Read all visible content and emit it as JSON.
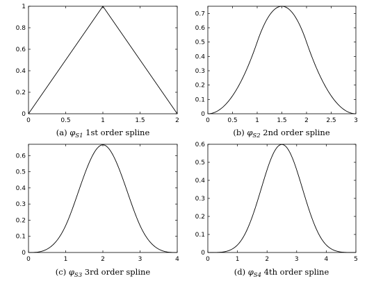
{
  "chart_data": [
    {
      "type": "line",
      "order": 1,
      "caption": {
        "prefix": "(a)",
        "symbol": "φ",
        "subscript": "S1",
        "text": "1st order spline"
      },
      "xlim": [
        0,
        2
      ],
      "ylim": [
        0,
        1
      ],
      "xticks": [
        0,
        0.5,
        1,
        1.5,
        2
      ],
      "yticks": [
        0,
        0.2,
        0.4,
        0.6,
        0.8,
        1
      ],
      "x": [
        0,
        0.25,
        0.5,
        0.75,
        1,
        1.25,
        1.5,
        1.75,
        2
      ],
      "y": [
        0,
        0.25,
        0.5,
        0.75,
        1,
        0.75,
        0.5,
        0.25,
        0
      ],
      "peak": {
        "x": 1,
        "y": 1
      }
    },
    {
      "type": "line",
      "order": 2,
      "caption": {
        "prefix": "(b)",
        "symbol": "φ",
        "subscript": "S2",
        "text": "2nd order spline"
      },
      "xlim": [
        0,
        3
      ],
      "ylim": [
        0,
        0.75
      ],
      "xticks": [
        0,
        0.5,
        1,
        1.5,
        2,
        2.5,
        3
      ],
      "yticks": [
        0,
        0.1,
        0.2,
        0.3,
        0.4,
        0.5,
        0.6,
        0.7
      ],
      "x": [
        0,
        0.5,
        1,
        1.5,
        2,
        2.5,
        3
      ],
      "y": [
        0,
        0.125,
        0.5,
        0.75,
        0.5,
        0.125,
        0
      ],
      "peak": {
        "x": 1.5,
        "y": 0.75
      }
    },
    {
      "type": "line",
      "order": 3,
      "caption": {
        "prefix": "(c)",
        "symbol": "φ",
        "subscript": "S3",
        "text": "3rd order spline"
      },
      "xlim": [
        0,
        4
      ],
      "ylim": [
        0,
        0.67
      ],
      "xticks": [
        0,
        1,
        2,
        3,
        4
      ],
      "yticks": [
        0,
        0.1,
        0.2,
        0.3,
        0.4,
        0.5,
        0.6
      ],
      "x": [
        0,
        0.5,
        1,
        1.5,
        2,
        2.5,
        3,
        3.5,
        4
      ],
      "y": [
        0,
        0.021,
        0.167,
        0.479,
        0.667,
        0.479,
        0.167,
        0.021,
        0
      ],
      "peak": {
        "x": 2,
        "y": 0.667
      }
    },
    {
      "type": "line",
      "order": 4,
      "caption": {
        "prefix": "(d)",
        "symbol": "φ",
        "subscript": "S4",
        "text": "4th order spline"
      },
      "xlim": [
        0,
        5
      ],
      "ylim": [
        0,
        0.6
      ],
      "xticks": [
        0,
        1,
        2,
        3,
        4,
        5
      ],
      "yticks": [
        0,
        0.1,
        0.2,
        0.3,
        0.4,
        0.5,
        0.6
      ],
      "x": [
        0,
        0.5,
        1,
        1.5,
        2,
        2.5,
        3,
        3.5,
        4,
        4.5,
        5
      ],
      "y": [
        0,
        0.003,
        0.042,
        0.195,
        0.458,
        0.599,
        0.458,
        0.195,
        0.042,
        0.003,
        0
      ],
      "peak": {
        "x": 2.5,
        "y": 0.599
      }
    }
  ]
}
